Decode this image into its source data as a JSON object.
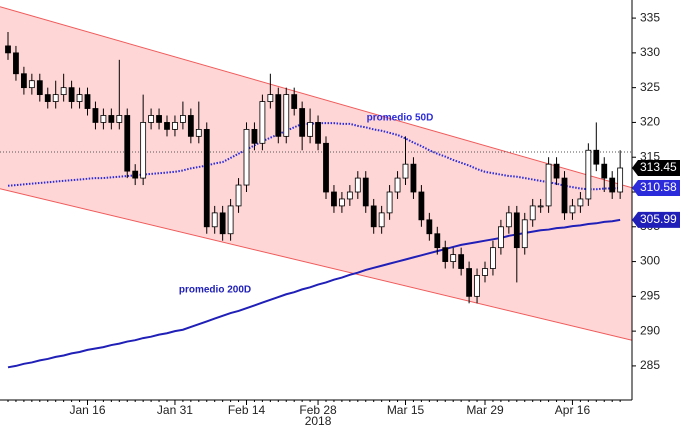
{
  "chart_data": {
    "type": "candlestick",
    "categories": [
      null,
      null,
      null,
      null,
      null,
      null,
      null,
      null,
      null,
      null,
      "Jan 16",
      null,
      null,
      null,
      null,
      null,
      null,
      null,
      null,
      null,
      null,
      "Jan 31",
      null,
      null,
      null,
      null,
      null,
      null,
      null,
      null,
      "Feb 14",
      null,
      null,
      null,
      null,
      null,
      null,
      null,
      null,
      "Feb 28",
      null,
      null,
      null,
      null,
      null,
      null,
      null,
      null,
      null,
      null,
      "Mar 15",
      null,
      null,
      null,
      null,
      null,
      null,
      null,
      null,
      null,
      "Mar 29",
      null,
      null,
      null,
      null,
      null,
      null,
      null,
      null,
      null,
      null,
      "Apr 16",
      null,
      null,
      null,
      null,
      null,
      null
    ],
    "year_label": "2018",
    "open": [
      331,
      330,
      327,
      325,
      326,
      324,
      323,
      324,
      325,
      323,
      324,
      322,
      320,
      321,
      320,
      321,
      313,
      312,
      320,
      321,
      320,
      319,
      320,
      321,
      318,
      319,
      305,
      307,
      304,
      308,
      311,
      319,
      317,
      323,
      324,
      318,
      324,
      322,
      318,
      320,
      317,
      310,
      308,
      309,
      310,
      312,
      308,
      305,
      307,
      310,
      312,
      314,
      310,
      306,
      304,
      302,
      300,
      301,
      299,
      295,
      298,
      299,
      302,
      305,
      307,
      302,
      306,
      308,
      308,
      314,
      312,
      307,
      308,
      309,
      316,
      314,
      312,
      310
    ],
    "high": [
      333,
      331,
      328,
      327,
      327,
      325,
      326,
      327,
      326,
      325,
      325,
      323,
      322,
      322,
      329,
      322,
      314,
      324,
      322,
      322,
      321,
      321,
      323,
      322,
      323,
      320,
      308,
      308,
      309,
      312,
      320,
      320,
      324,
      327,
      325,
      325,
      325,
      323,
      322,
      321,
      318,
      311,
      310,
      311,
      313,
      313,
      309,
      308,
      311,
      313,
      318,
      315,
      311,
      307,
      305,
      303,
      302,
      302,
      300,
      299,
      300,
      303,
      306,
      308,
      308,
      307,
      309,
      309,
      315,
      315,
      313,
      309,
      310,
      317,
      320,
      315,
      313,
      316
    ],
    "low": [
      329,
      326,
      324,
      324,
      323,
      322,
      322,
      323,
      322,
      322,
      321,
      319,
      319,
      319,
      319,
      312,
      311,
      311,
      319,
      319,
      318,
      318,
      319,
      317,
      317,
      304,
      304,
      303,
      303,
      307,
      310,
      316,
      316,
      322,
      317,
      317,
      321,
      316,
      317,
      316,
      309,
      307,
      307,
      308,
      309,
      307,
      304,
      304,
      306,
      309,
      311,
      309,
      305,
      303,
      301,
      299,
      299,
      298,
      294,
      294,
      297,
      298,
      301,
      304,
      297,
      301,
      305,
      307,
      307,
      311,
      306,
      306,
      307,
      308,
      313,
      310,
      309,
      309
    ],
    "close": [
      330,
      327,
      325,
      326,
      324,
      323,
      324,
      325,
      323,
      324,
      322,
      320,
      321,
      320,
      321,
      313,
      312,
      320,
      321,
      320,
      319,
      320,
      321,
      318,
      319,
      305,
      307,
      304,
      308,
      311,
      319,
      317,
      323,
      324,
      318,
      324,
      322,
      318,
      320,
      317,
      310,
      308,
      309,
      310,
      312,
      308,
      305,
      307,
      310,
      312,
      314,
      310,
      306,
      304,
      302,
      300,
      301,
      299,
      295,
      298,
      299,
      302,
      305,
      307,
      302,
      306,
      308,
      308,
      314,
      312,
      307,
      308,
      309,
      316,
      314,
      312,
      310,
      313.45
    ],
    "up_color": "#ffffff",
    "down_color": "#000000",
    "last_color": "#000000",
    "series": [
      {
        "name": "promedio 50D",
        "color": "#2b2bdb",
        "style": "dotted",
        "values": [
          310.9,
          311.0,
          311.1,
          311.2,
          311.3,
          311.4,
          311.5,
          311.6,
          311.7,
          311.8,
          311.9,
          312.0,
          312.0,
          312.1,
          312.2,
          312.3,
          312.4,
          312.5,
          312.6,
          312.7,
          312.8,
          312.9,
          313.1,
          313.4,
          313.6,
          313.8,
          314.1,
          314.3,
          314.9,
          315.5,
          316.1,
          316.7,
          317.3,
          317.8,
          318.3,
          318.8,
          319.3,
          319.8,
          319.8,
          319.9,
          319.9,
          319.9,
          319.8,
          319.8,
          319.5,
          319.3,
          319.0,
          318.8,
          318.5,
          318.2,
          317.7,
          317.1,
          316.6,
          316.0,
          315.5,
          315.1,
          314.6,
          314.2,
          313.8,
          313.3,
          312.9,
          312.7,
          312.5,
          312.3,
          312.2,
          312.0,
          311.8,
          311.6,
          311.4,
          311.2,
          310.9,
          310.7,
          310.5,
          310.4,
          310.4,
          310.5,
          310.5,
          310.58
        ]
      },
      {
        "name": "promedio 200D",
        "color": "#2020b8",
        "style": "solid",
        "values": [
          284.8,
          285.0,
          285.3,
          285.5,
          285.8,
          286.0,
          286.3,
          286.5,
          286.8,
          287.0,
          287.3,
          287.5,
          287.7,
          288.0,
          288.2,
          288.5,
          288.7,
          289.0,
          289.2,
          289.5,
          289.7,
          290.0,
          290.2,
          290.6,
          291.0,
          291.4,
          291.8,
          292.2,
          292.6,
          292.9,
          293.3,
          293.7,
          294.1,
          294.5,
          294.9,
          295.3,
          295.6,
          296.0,
          296.3,
          296.7,
          297.0,
          297.4,
          297.7,
          298.1,
          298.4,
          298.8,
          299.1,
          299.4,
          299.7,
          300.0,
          300.3,
          300.6,
          300.9,
          301.2,
          301.5,
          301.8,
          302.1,
          302.4,
          302.6,
          302.8,
          303.0,
          303.2,
          303.4,
          303.7,
          303.9,
          304.1,
          304.3,
          304.5,
          304.6,
          304.8,
          304.9,
          305.1,
          305.2,
          305.4,
          305.5,
          305.7,
          305.8,
          305.99
        ]
      }
    ],
    "channel": {
      "upper": [
        336.3,
        311.1
      ],
      "lower": [
        310.2,
        289.1
      ],
      "color": "#f05a5a",
      "fill": "#ffd6d6"
    },
    "reference_line": 315.75,
    "ylim": [
      280.1,
      337.6
    ],
    "yticks": [
      285,
      290,
      295,
      300,
      305,
      310,
      315,
      320,
      325,
      330,
      335
    ]
  }
}
